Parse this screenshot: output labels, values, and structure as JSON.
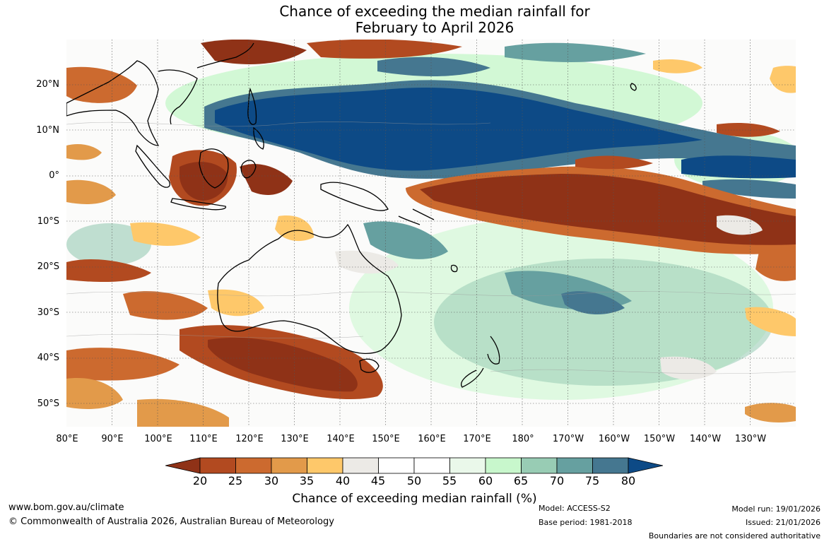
{
  "title_line1": "Chance of exceeding the median rainfall for",
  "title_line2": "February to April 2026",
  "lat_labels": [
    "20°N",
    "10°N",
    "0°",
    "10°S",
    "20°S",
    "30°S",
    "40°S",
    "50°S"
  ],
  "lon_labels": [
    "80°E",
    "90°E",
    "100°E",
    "110°E",
    "120°E",
    "130°E",
    "140°E",
    "150°E",
    "160°E",
    "170°E",
    "180°",
    "170°W",
    "160°W",
    "150°W",
    "140°W",
    "130°W"
  ],
  "colorbar": {
    "ticks": [
      "20",
      "25",
      "30",
      "35",
      "40",
      "45",
      "50",
      "55",
      "60",
      "65",
      "70",
      "75",
      "80"
    ],
    "colors": [
      "#8f3217",
      "#b24a20",
      "#cc6a2f",
      "#e29a4a",
      "#fec86a",
      "#eceae6",
      "#ffffff",
      "#ffffff",
      "#eaf8ea",
      "#c8f7cc",
      "#98ccb4",
      "#66a0a0",
      "#457790",
      "#0d4a86"
    ],
    "title": "Chance of exceeding median rainfall (%)"
  },
  "footer": {
    "website": "www.bom.gov.au/climate",
    "copyright": "© Commonwealth of Australia 2026, Australian Bureau of Meteorology",
    "model": "Model: ACCESS-S2",
    "base_period": "Base period: 1981-2018",
    "model_run": "Model run: 19/01/2026",
    "issued": "Issued: 21/01/2026",
    "disclaimer": "Boundaries are not considered authoritative"
  }
}
